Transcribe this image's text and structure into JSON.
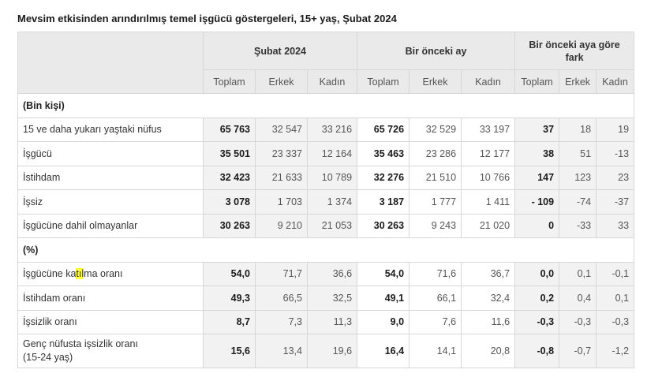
{
  "title": "Mevsim etkisinden arındırılmış temel işgücü göstergeleri, 15+ yaş, Şubat 2024",
  "groups": [
    "Şubat 2024",
    "Bir önceki ay",
    "Bir önceki aya göre fark"
  ],
  "subheaders": [
    "Toplam",
    "Erkek",
    "Kadın",
    "Toplam",
    "Erkek",
    "Kadın",
    "Toplam",
    "Erkek",
    "Kadın"
  ],
  "section_thousand": "(Bin kişi)",
  "section_percent": "(%)",
  "rows_thousand": [
    {
      "label": "15 ve daha yukarı yaştaki nüfus",
      "values": [
        "65 763",
        "32 547",
        "33 216",
        "65 726",
        "32 529",
        "33 197",
        "37",
        "18",
        "19"
      ]
    },
    {
      "label": "İşgücü",
      "values": [
        "35 501",
        "23 337",
        "12 164",
        "35 463",
        "23 286",
        "12 177",
        "38",
        "51",
        "-13"
      ]
    },
    {
      "label": "İstihdam",
      "values": [
        "32 423",
        "21 633",
        "10 789",
        "32 276",
        "21 510",
        "10 766",
        "147",
        "123",
        "23"
      ]
    },
    {
      "label": "İşsiz",
      "values": [
        "3 078",
        "1 703",
        "1 374",
        "3 187",
        "1 777",
        "1 411",
        "- 109",
        "-74",
        "-37"
      ]
    },
    {
      "label": "İşgücüne dahil olmayanlar",
      "values": [
        "30 263",
        "9 210",
        "21 053",
        "30 263",
        "9 243",
        "21 020",
        "0",
        "-33",
        "33"
      ]
    }
  ],
  "row_participation": {
    "label_pre": "İşgücüne ka",
    "label_highlight": "tıl",
    "label_post": "ma oranı",
    "values": [
      "54,0",
      "71,7",
      "36,6",
      "54,0",
      "71,6",
      "36,7",
      "0,0",
      "0,1",
      "-0,1"
    ]
  },
  "rows_percent": [
    {
      "label": "İstihdam oranı",
      "values": [
        "49,3",
        "66,5",
        "32,5",
        "49,1",
        "66,1",
        "32,4",
        "0,2",
        "0,4",
        "0,1"
      ]
    },
    {
      "label": "İşsizlik oranı",
      "values": [
        "8,7",
        "7,3",
        "11,3",
        "9,0",
        "7,6",
        "11,6",
        "-0,3",
        "-0,3",
        "-0,3"
      ]
    }
  ],
  "row_youth": {
    "label_line1": "Genç nüfusta işsizlik oranı",
    "label_line2": "(15-24 yaş)",
    "values": [
      "15,6",
      "13,4",
      "19,6",
      "16,4",
      "14,1",
      "20,8",
      "-0,8",
      "-0,7",
      "-1,2"
    ]
  }
}
